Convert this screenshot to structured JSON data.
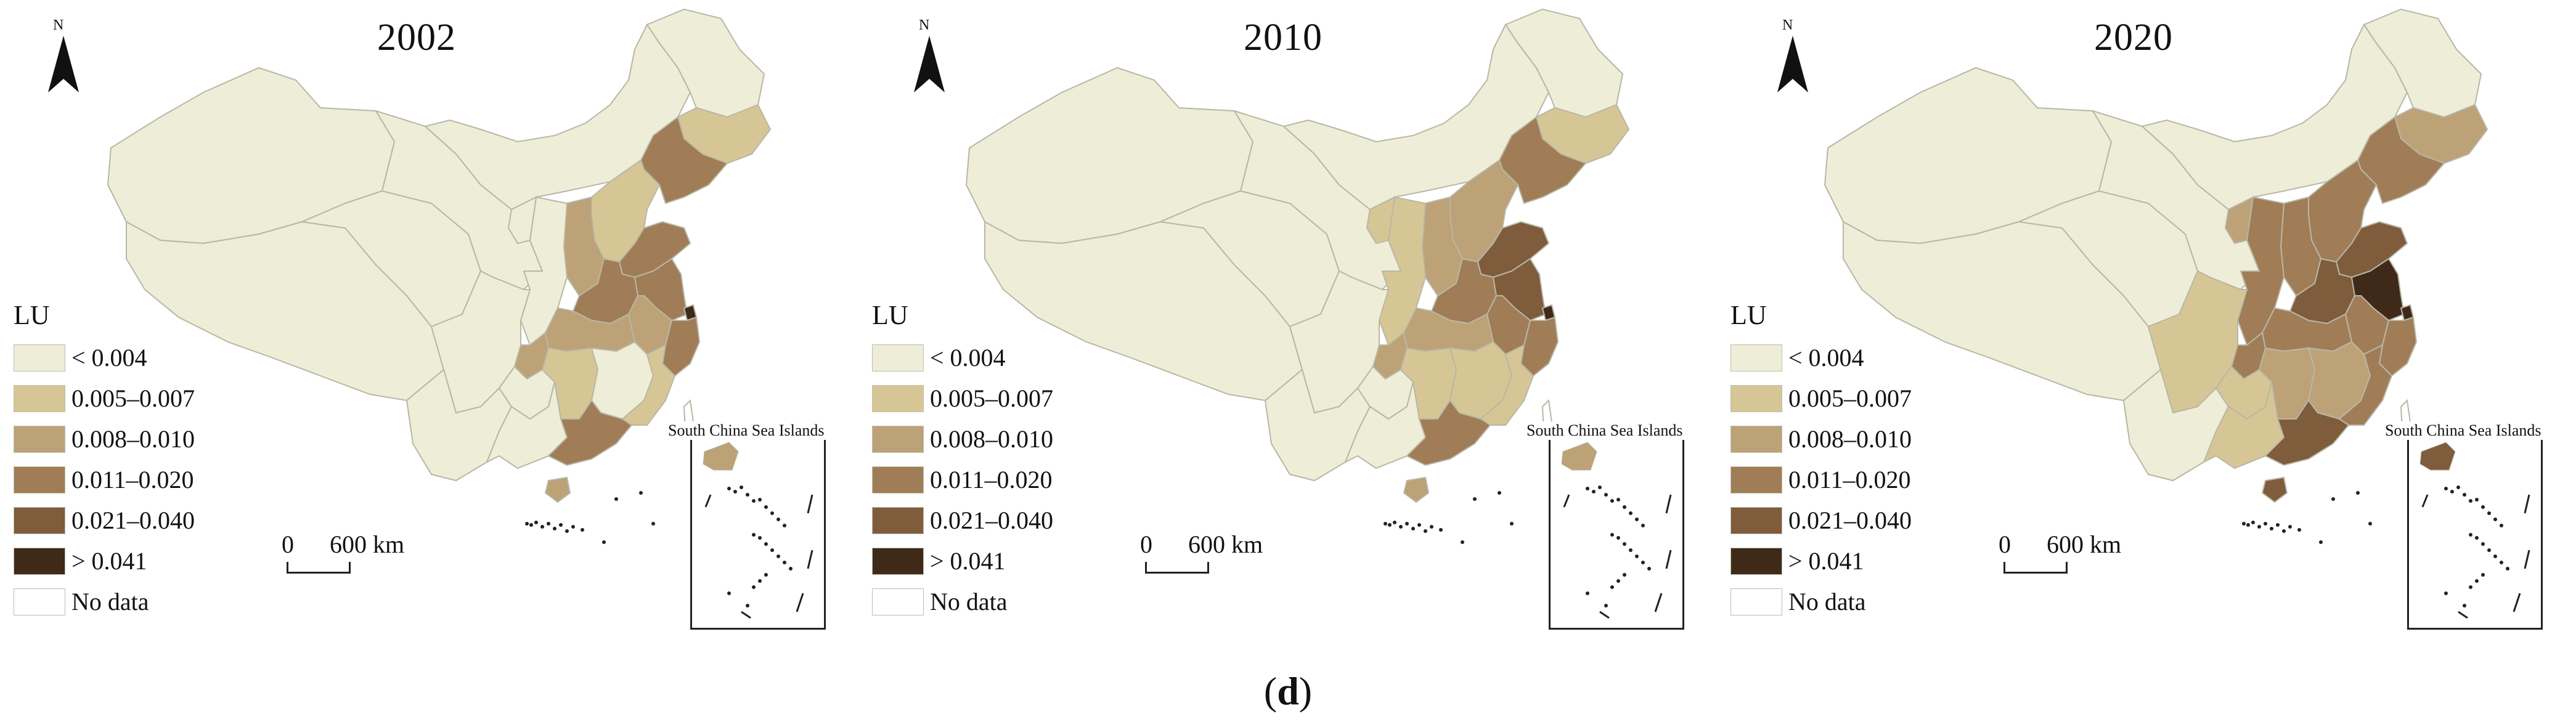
{
  "figure": {
    "caption_open": "(",
    "caption_letter": "d",
    "caption_close": ")"
  },
  "legend": {
    "title": "LU",
    "classes": [
      {
        "label": "< 0.004",
        "color": "#eeedd7"
      },
      {
        "label": "0.005–0.007",
        "color": "#d7c695"
      },
      {
        "label": "0.008–0.010",
        "color": "#bda278"
      },
      {
        "label": "0.011–0.020",
        "color": "#a07d57"
      },
      {
        "label": "0.021–0.040",
        "color": "#7e5c3c"
      },
      {
        "label": "> 0.041",
        "color": "#3f2a1a"
      },
      {
        "label": "No data",
        "color": "#ffffff"
      }
    ]
  },
  "north_label": "N",
  "scale": {
    "zero": "0",
    "distance": "600 km"
  },
  "inset_label": "South China Sea Islands",
  "panels": [
    {
      "year": "2002",
      "regions": {
        "xinjiang": 0,
        "tibet": 0,
        "qinghai": 0,
        "gansu": 0,
        "innermongolia": 0,
        "heilongjiang": 0,
        "jilin": 1,
        "liaoning": 3,
        "beijing": 5,
        "tianjin": 4,
        "hebei": 1,
        "shanxi": 2,
        "shaanxi": 0,
        "ningxia": 0,
        "shandong": 3,
        "henan": 3,
        "jiangsu": 3,
        "shanghai": 5,
        "anhui": 2,
        "zhejiang": 3,
        "hubei": 2,
        "chongqing": 2,
        "sichuan": 0,
        "yunnan": 0,
        "guizhou": 0,
        "hunan": 1,
        "jiangxi": 0,
        "fujian": 1,
        "guangxi": 0,
        "guangdong": 3,
        "hainan": 2,
        "taiwan": 6
      }
    },
    {
      "year": "2010",
      "regions": {
        "xinjiang": 0,
        "tibet": 0,
        "qinghai": 0,
        "gansu": 0,
        "innermongolia": 0,
        "heilongjiang": 0,
        "jilin": 1,
        "liaoning": 3,
        "beijing": 5,
        "tianjin": 4,
        "hebei": 2,
        "shanxi": 2,
        "shaanxi": 1,
        "ningxia": 1,
        "shandong": 4,
        "henan": 3,
        "jiangsu": 4,
        "shanghai": 5,
        "anhui": 3,
        "zhejiang": 3,
        "hubei": 2,
        "chongqing": 2,
        "sichuan": 0,
        "yunnan": 0,
        "guizhou": 0,
        "hunan": 1,
        "jiangxi": 1,
        "fujian": 1,
        "guangxi": 0,
        "guangdong": 3,
        "hainan": 2,
        "taiwan": 6
      }
    },
    {
      "year": "2020",
      "regions": {
        "xinjiang": 0,
        "tibet": 0,
        "qinghai": 0,
        "gansu": 0,
        "innermongolia": 0,
        "heilongjiang": 0,
        "jilin": 2,
        "liaoning": 3,
        "beijing": 5,
        "tianjin": 4,
        "hebei": 3,
        "shanxi": 3,
        "shaanxi": 3,
        "ningxia": 2,
        "shandong": 4,
        "henan": 4,
        "jiangsu": 5,
        "shanghai": 5,
        "anhui": 3,
        "zhejiang": 3,
        "hubei": 3,
        "chongqing": 3,
        "sichuan": 1,
        "yunnan": 0,
        "guizhou": 1,
        "hunan": 2,
        "jiangxi": 2,
        "fujian": 3,
        "guangxi": 1,
        "guangdong": 4,
        "hainan": 4,
        "taiwan": 6
      }
    }
  ]
}
